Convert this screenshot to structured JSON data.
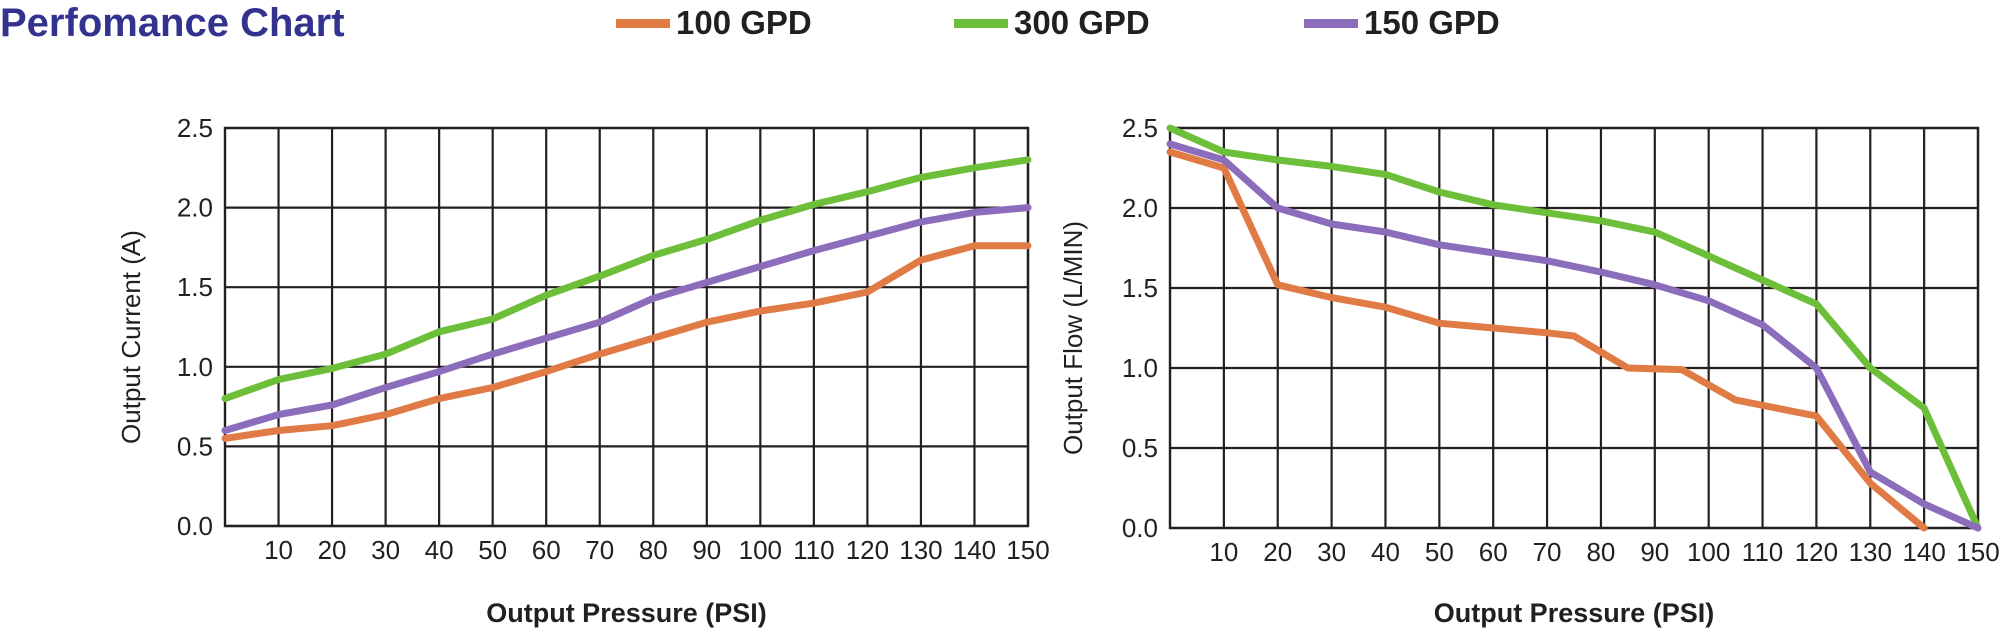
{
  "title": "Perfomance Chart",
  "legend": [
    {
      "name": "100 GPD",
      "color": "#e07b45"
    },
    {
      "name": "300 GPD",
      "color": "#6dbf3a"
    },
    {
      "name": "150 GPD",
      "color": "#8c6dbb"
    }
  ],
  "chart_data": [
    {
      "type": "line",
      "xlabel": "Output Pressure (PSI)",
      "ylabel": "Output Current (A)",
      "xlim": [
        0,
        150
      ],
      "ylim": [
        0,
        2.5
      ],
      "x_ticks": [
        10,
        20,
        30,
        40,
        50,
        60,
        70,
        80,
        90,
        100,
        110,
        120,
        130,
        140,
        150
      ],
      "y_ticks": [
        "0.0",
        "0.5",
        "1.0",
        "1.5",
        "2.0",
        "2.5"
      ],
      "grid": true,
      "series": [
        {
          "name": "100 GPD",
          "color": "#e07b45",
          "x": [
            0,
            10,
            20,
            30,
            40,
            50,
            60,
            70,
            80,
            90,
            100,
            110,
            120,
            130,
            140,
            150
          ],
          "y": [
            0.55,
            0.6,
            0.63,
            0.7,
            0.8,
            0.87,
            0.97,
            1.08,
            1.18,
            1.28,
            1.35,
            1.4,
            1.47,
            1.67,
            1.76,
            1.76
          ]
        },
        {
          "name": "300 GPD",
          "color": "#6dbf3a",
          "x": [
            0,
            10,
            20,
            30,
            40,
            50,
            60,
            70,
            80,
            90,
            100,
            110,
            120,
            130,
            140,
            150
          ],
          "y": [
            0.8,
            0.92,
            0.99,
            1.08,
            1.22,
            1.3,
            1.45,
            1.57,
            1.7,
            1.8,
            1.92,
            2.02,
            2.1,
            2.19,
            2.25,
            2.3
          ]
        },
        {
          "name": "150 GPD",
          "color": "#8c6dbb",
          "x": [
            0,
            10,
            20,
            30,
            40,
            50,
            60,
            70,
            80,
            90,
            100,
            110,
            120,
            130,
            140,
            150
          ],
          "y": [
            0.6,
            0.7,
            0.76,
            0.87,
            0.97,
            1.08,
            1.18,
            1.28,
            1.43,
            1.53,
            1.63,
            1.73,
            1.82,
            1.91,
            1.97,
            2.0
          ]
        }
      ]
    },
    {
      "type": "line",
      "xlabel": "Output Pressure (PSI)",
      "ylabel": "Output Flow (L/MIN)",
      "xlim": [
        0,
        150
      ],
      "ylim": [
        0,
        2.5
      ],
      "x_ticks": [
        10,
        20,
        30,
        40,
        50,
        60,
        70,
        80,
        90,
        100,
        110,
        120,
        130,
        140,
        150
      ],
      "y_ticks": [
        "0.0",
        "0.5",
        "1.0",
        "1.5",
        "2.0",
        "2.5"
      ],
      "grid": true,
      "series": [
        {
          "name": "100 GPD",
          "color": "#e07b45",
          "x": [
            0,
            10,
            20,
            30,
            40,
            50,
            60,
            70,
            75,
            85,
            95,
            105,
            120,
            130,
            140
          ],
          "y": [
            2.35,
            2.25,
            1.52,
            1.44,
            1.38,
            1.28,
            1.25,
            1.22,
            1.2,
            1.0,
            0.99,
            0.8,
            0.7,
            0.28,
            0.0
          ]
        },
        {
          "name": "300 GPD",
          "color": "#6dbf3a",
          "x": [
            0,
            10,
            20,
            30,
            40,
            50,
            60,
            70,
            80,
            90,
            100,
            110,
            120,
            130,
            140,
            150
          ],
          "y": [
            2.5,
            2.35,
            2.3,
            2.26,
            2.21,
            2.1,
            2.02,
            1.97,
            1.92,
            1.85,
            1.7,
            1.55,
            1.4,
            1.0,
            0.75,
            0.0
          ]
        },
        {
          "name": "150 GPD",
          "color": "#8c6dbb",
          "x": [
            0,
            10,
            20,
            30,
            40,
            50,
            60,
            70,
            80,
            90,
            100,
            110,
            120,
            130,
            140,
            150
          ],
          "y": [
            2.4,
            2.3,
            2.0,
            1.9,
            1.85,
            1.77,
            1.72,
            1.67,
            1.6,
            1.52,
            1.42,
            1.27,
            1.0,
            0.35,
            0.15,
            0.0
          ]
        }
      ]
    }
  ]
}
